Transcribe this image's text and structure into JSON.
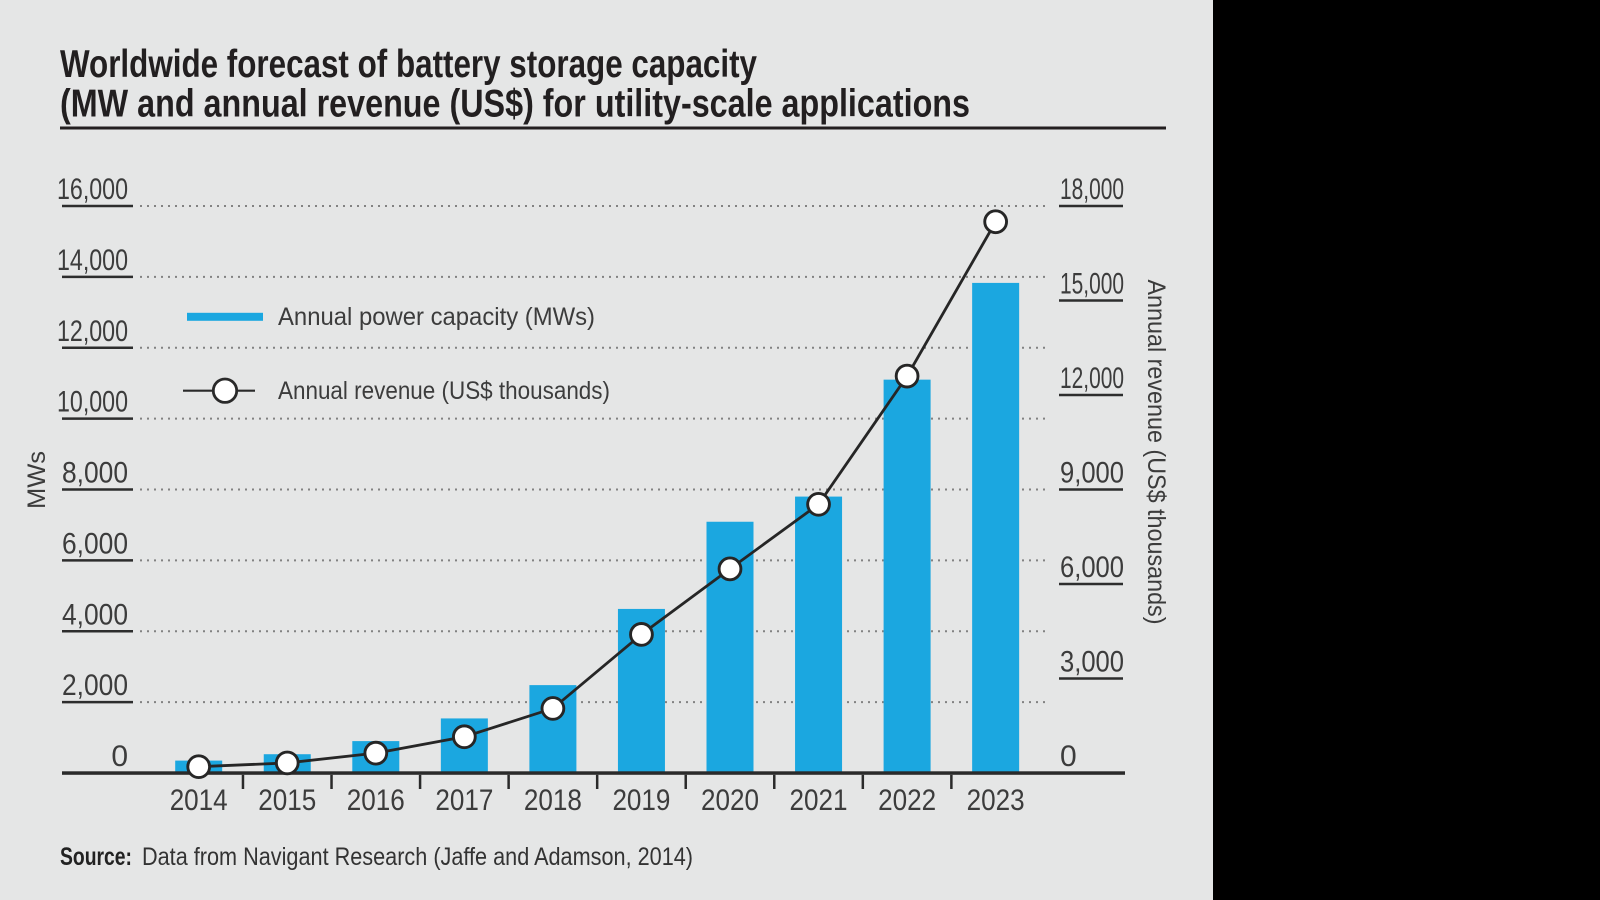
{
  "title": {
    "line1": "Worldwide forecast of battery storage capacity",
    "line2": "(MW and annual revenue (US$) for utility-scale applications"
  },
  "source": {
    "label": "Source:",
    "text": "Data from Navigant Research (Jaffe and Adamson, 2014)"
  },
  "chart_data": {
    "type": "bar",
    "categories": [
      "2014",
      "2015",
      "2016",
      "2017",
      "2018",
      "2019",
      "2020",
      "2021",
      "2022",
      "2023"
    ],
    "series": [
      {
        "name": "Annual power capacity (MWs)",
        "type": "bar",
        "axis": "left",
        "values": [
          350,
          530,
          900,
          1540,
          2480,
          4630,
          7090,
          7800,
          11100,
          13830
        ]
      },
      {
        "name": "Annual revenue (US$ thousands)",
        "type": "line",
        "axis": "right",
        "values": [
          200,
          320,
          630,
          1150,
          2050,
          4400,
          6480,
          8530,
          12600,
          17500
        ]
      }
    ],
    "left_axis": {
      "label": "MWs",
      "min": 0,
      "max": 16000,
      "ticks": [
        {
          "value": 0,
          "label": "0"
        },
        {
          "value": 2000,
          "label": "2,000"
        },
        {
          "value": 4000,
          "label": "4,000"
        },
        {
          "value": 6000,
          "label": "6,000"
        },
        {
          "value": 8000,
          "label": "8,000"
        },
        {
          "value": 10000,
          "label": "10,000"
        },
        {
          "value": 12000,
          "label": "12,000"
        },
        {
          "value": 14000,
          "label": "14,000"
        },
        {
          "value": 16000,
          "label": "16,000"
        }
      ]
    },
    "right_axis": {
      "label": "Annual revenue (US$ thousands)",
      "min": 0,
      "max": 18000,
      "ticks": [
        {
          "value": 0,
          "label": "0"
        },
        {
          "value": 3000,
          "label": "3,000"
        },
        {
          "value": 6000,
          "label": "6,000"
        },
        {
          "value": 9000,
          "label": "9,000"
        },
        {
          "value": 12000,
          "label": "12,000"
        },
        {
          "value": 15000,
          "label": "15,000"
        },
        {
          "value": 18000,
          "label": "18,000"
        }
      ]
    },
    "legend": [
      {
        "label": "Annual power capacity (MWs)",
        "symbol": "bar"
      },
      {
        "label": "Annual revenue (US$ thousands)",
        "symbol": "line-marker"
      }
    ],
    "grid": "dotted-horizontal",
    "legend_position": "upper-left-inside",
    "colors": {
      "bar": "#1ba7e0",
      "line": "#2a2a2a",
      "marker_fill": "#ffffff",
      "background": "#e5e6e6",
      "side_panel": "#000000",
      "text": "#3c3c3c",
      "title_text": "#221f20"
    }
  }
}
